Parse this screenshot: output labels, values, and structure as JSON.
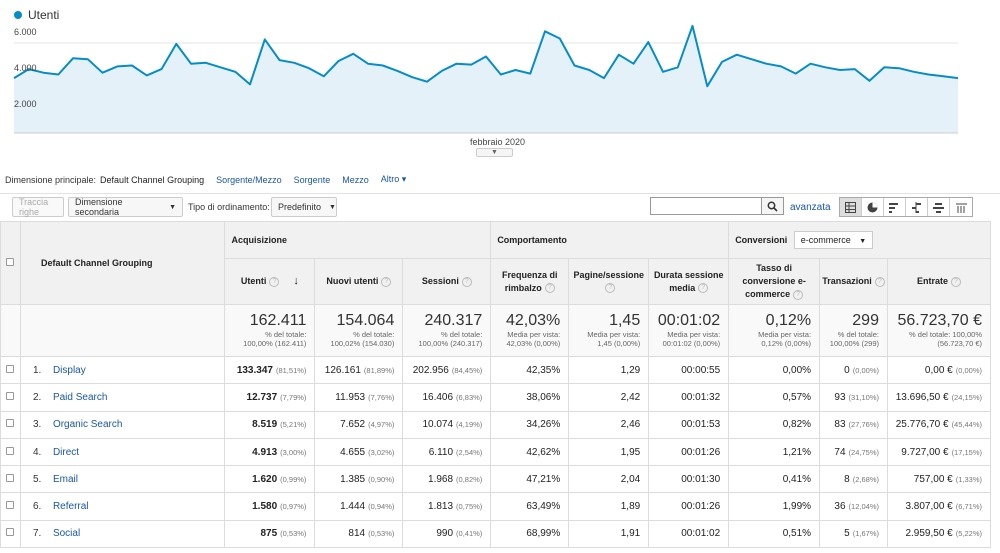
{
  "chart": {
    "legend": "Utenti",
    "y_ticks": [
      "6.000",
      "4.000",
      "2.000"
    ],
    "x_label": "febbraio 2020",
    "color": "#058dc7"
  },
  "chart_data": {
    "type": "area",
    "title": "",
    "series": [
      {
        "name": "Utenti",
        "values": [
          4050,
          4550,
          4350,
          4250,
          5150,
          5100,
          4350,
          4700,
          4750,
          4200,
          4550,
          5950,
          4850,
          4900,
          4650,
          4400,
          3700,
          6200,
          5050,
          4900,
          4600,
          4150,
          5000,
          5400,
          4850,
          4750,
          4450,
          4100,
          3850,
          4450,
          4850,
          4800,
          5250,
          4250,
          4500,
          4300,
          6650,
          6250,
          4750,
          4500,
          4050,
          5350,
          4850,
          6050,
          4400,
          4650,
          6950,
          3600,
          4950,
          5350,
          5100,
          4850,
          4700,
          4300,
          4850,
          4650,
          4500,
          4550,
          3900,
          4650,
          4600,
          4400,
          4250,
          4150,
          4050
        ]
      }
    ],
    "ylim": [
      1000,
      7000
    ],
    "y_ticks": [
      2000,
      4000,
      6000
    ],
    "xlabel": "febbraio 2020"
  },
  "dimension_bar": {
    "label": "Dimensione principale:",
    "active": "Default Channel Grouping",
    "links": [
      "Sorgente/Mezzo",
      "Sorgente",
      "Mezzo",
      "Altro ▾"
    ]
  },
  "toolbar": {
    "plot_rows": "Traccia righe",
    "secondary_dimension": "Dimensione secondaria",
    "sort_label": "Tipo di ordinamento:",
    "sort_value": "Predefinito",
    "advanced": "avanzata"
  },
  "table": {
    "dimension_header": "Default Channel Grouping",
    "groups": {
      "acquisition": "Acquisizione",
      "behavior": "Comportamento",
      "conversions": "Conversioni",
      "conversions_select": "e-commerce"
    },
    "columns": [
      "Utenti",
      "Nuovi utenti",
      "Sessioni",
      "Frequenza di rimbalzo",
      "Pagine/sessione",
      "Durata sessione media",
      "Tasso di conversione e-commerce",
      "Transazioni",
      "Entrate"
    ],
    "totals": [
      {
        "value": "162.411",
        "sub1": "% del totale:",
        "sub2": "100,00% (162.411)"
      },
      {
        "value": "154.064",
        "sub1": "% del totale:",
        "sub2": "100,02% (154.030)"
      },
      {
        "value": "240.317",
        "sub1": "% del totale:",
        "sub2": "100,00% (240.317)"
      },
      {
        "value": "42,03%",
        "sub1": "Media per vista:",
        "sub2": "42,03% (0,00%)"
      },
      {
        "value": "1,45",
        "sub1": "Media per vista:",
        "sub2": "1,45 (0,00%)"
      },
      {
        "value": "00:01:02",
        "sub1": "Media per vista:",
        "sub2": "00:01:02 (0,00%)"
      },
      {
        "value": "0,12%",
        "sub1": "Media per vista:",
        "sub2": "0,12% (0,00%)"
      },
      {
        "value": "299",
        "sub1": "% del totale:",
        "sub2": "100,00% (299)"
      },
      {
        "value": "56.723,70 €",
        "sub1": "% del totale: 100,00%",
        "sub2": "(56.723,70 €)"
      }
    ],
    "rows": [
      {
        "idx": "1.",
        "name": "Display",
        "users": "133.347",
        "users_pct": "(81,51%)",
        "new_users": "126.161",
        "new_users_pct": "(81,89%)",
        "sessions": "202.956",
        "sessions_pct": "(84,45%)",
        "bounce": "42,35%",
        "pages": "1,29",
        "duration": "00:00:55",
        "conv": "0,00%",
        "trans": "0",
        "trans_pct": "(0,00%)",
        "revenue": "0,00 €",
        "revenue_pct": "(0,00%)"
      },
      {
        "idx": "2.",
        "name": "Paid Search",
        "users": "12.737",
        "users_pct": "(7,79%)",
        "new_users": "11.953",
        "new_users_pct": "(7,76%)",
        "sessions": "16.406",
        "sessions_pct": "(6,83%)",
        "bounce": "38,06%",
        "pages": "2,42",
        "duration": "00:01:32",
        "conv": "0,57%",
        "trans": "93",
        "trans_pct": "(31,10%)",
        "revenue": "13.696,50 €",
        "revenue_pct": "(24,15%)"
      },
      {
        "idx": "3.",
        "name": "Organic Search",
        "users": "8.519",
        "users_pct": "(5,21%)",
        "new_users": "7.652",
        "new_users_pct": "(4,97%)",
        "sessions": "10.074",
        "sessions_pct": "(4,19%)",
        "bounce": "34,26%",
        "pages": "2,46",
        "duration": "00:01:53",
        "conv": "0,82%",
        "trans": "83",
        "trans_pct": "(27,76%)",
        "revenue": "25.776,70 €",
        "revenue_pct": "(45,44%)"
      },
      {
        "idx": "4.",
        "name": "Direct",
        "users": "4.913",
        "users_pct": "(3,00%)",
        "new_users": "4.655",
        "new_users_pct": "(3,02%)",
        "sessions": "6.110",
        "sessions_pct": "(2,54%)",
        "bounce": "42,62%",
        "pages": "1,95",
        "duration": "00:01:26",
        "conv": "1,21%",
        "trans": "74",
        "trans_pct": "(24,75%)",
        "revenue": "9.727,00 €",
        "revenue_pct": "(17,15%)"
      },
      {
        "idx": "5.",
        "name": "Email",
        "users": "1.620",
        "users_pct": "(0,99%)",
        "new_users": "1.385",
        "new_users_pct": "(0,90%)",
        "sessions": "1.968",
        "sessions_pct": "(0,82%)",
        "bounce": "47,21%",
        "pages": "2,04",
        "duration": "00:01:30",
        "conv": "0,41%",
        "trans": "8",
        "trans_pct": "(2,68%)",
        "revenue": "757,00 €",
        "revenue_pct": "(1,33%)"
      },
      {
        "idx": "6.",
        "name": "Referral",
        "users": "1.580",
        "users_pct": "(0,97%)",
        "new_users": "1.444",
        "new_users_pct": "(0,94%)",
        "sessions": "1.813",
        "sessions_pct": "(0,75%)",
        "bounce": "63,49%",
        "pages": "1,89",
        "duration": "00:01:26",
        "conv": "1,99%",
        "trans": "36",
        "trans_pct": "(12,04%)",
        "revenue": "3.807,00 €",
        "revenue_pct": "(6,71%)"
      },
      {
        "idx": "7.",
        "name": "Social",
        "users": "875",
        "users_pct": "(0,53%)",
        "new_users": "814",
        "new_users_pct": "(0,53%)",
        "sessions": "990",
        "sessions_pct": "(0,41%)",
        "bounce": "68,99%",
        "pages": "1,91",
        "duration": "00:01:02",
        "conv": "0,51%",
        "trans": "5",
        "trans_pct": "(1,67%)",
        "revenue": "2.959,50 €",
        "revenue_pct": "(5,22%)"
      }
    ]
  }
}
